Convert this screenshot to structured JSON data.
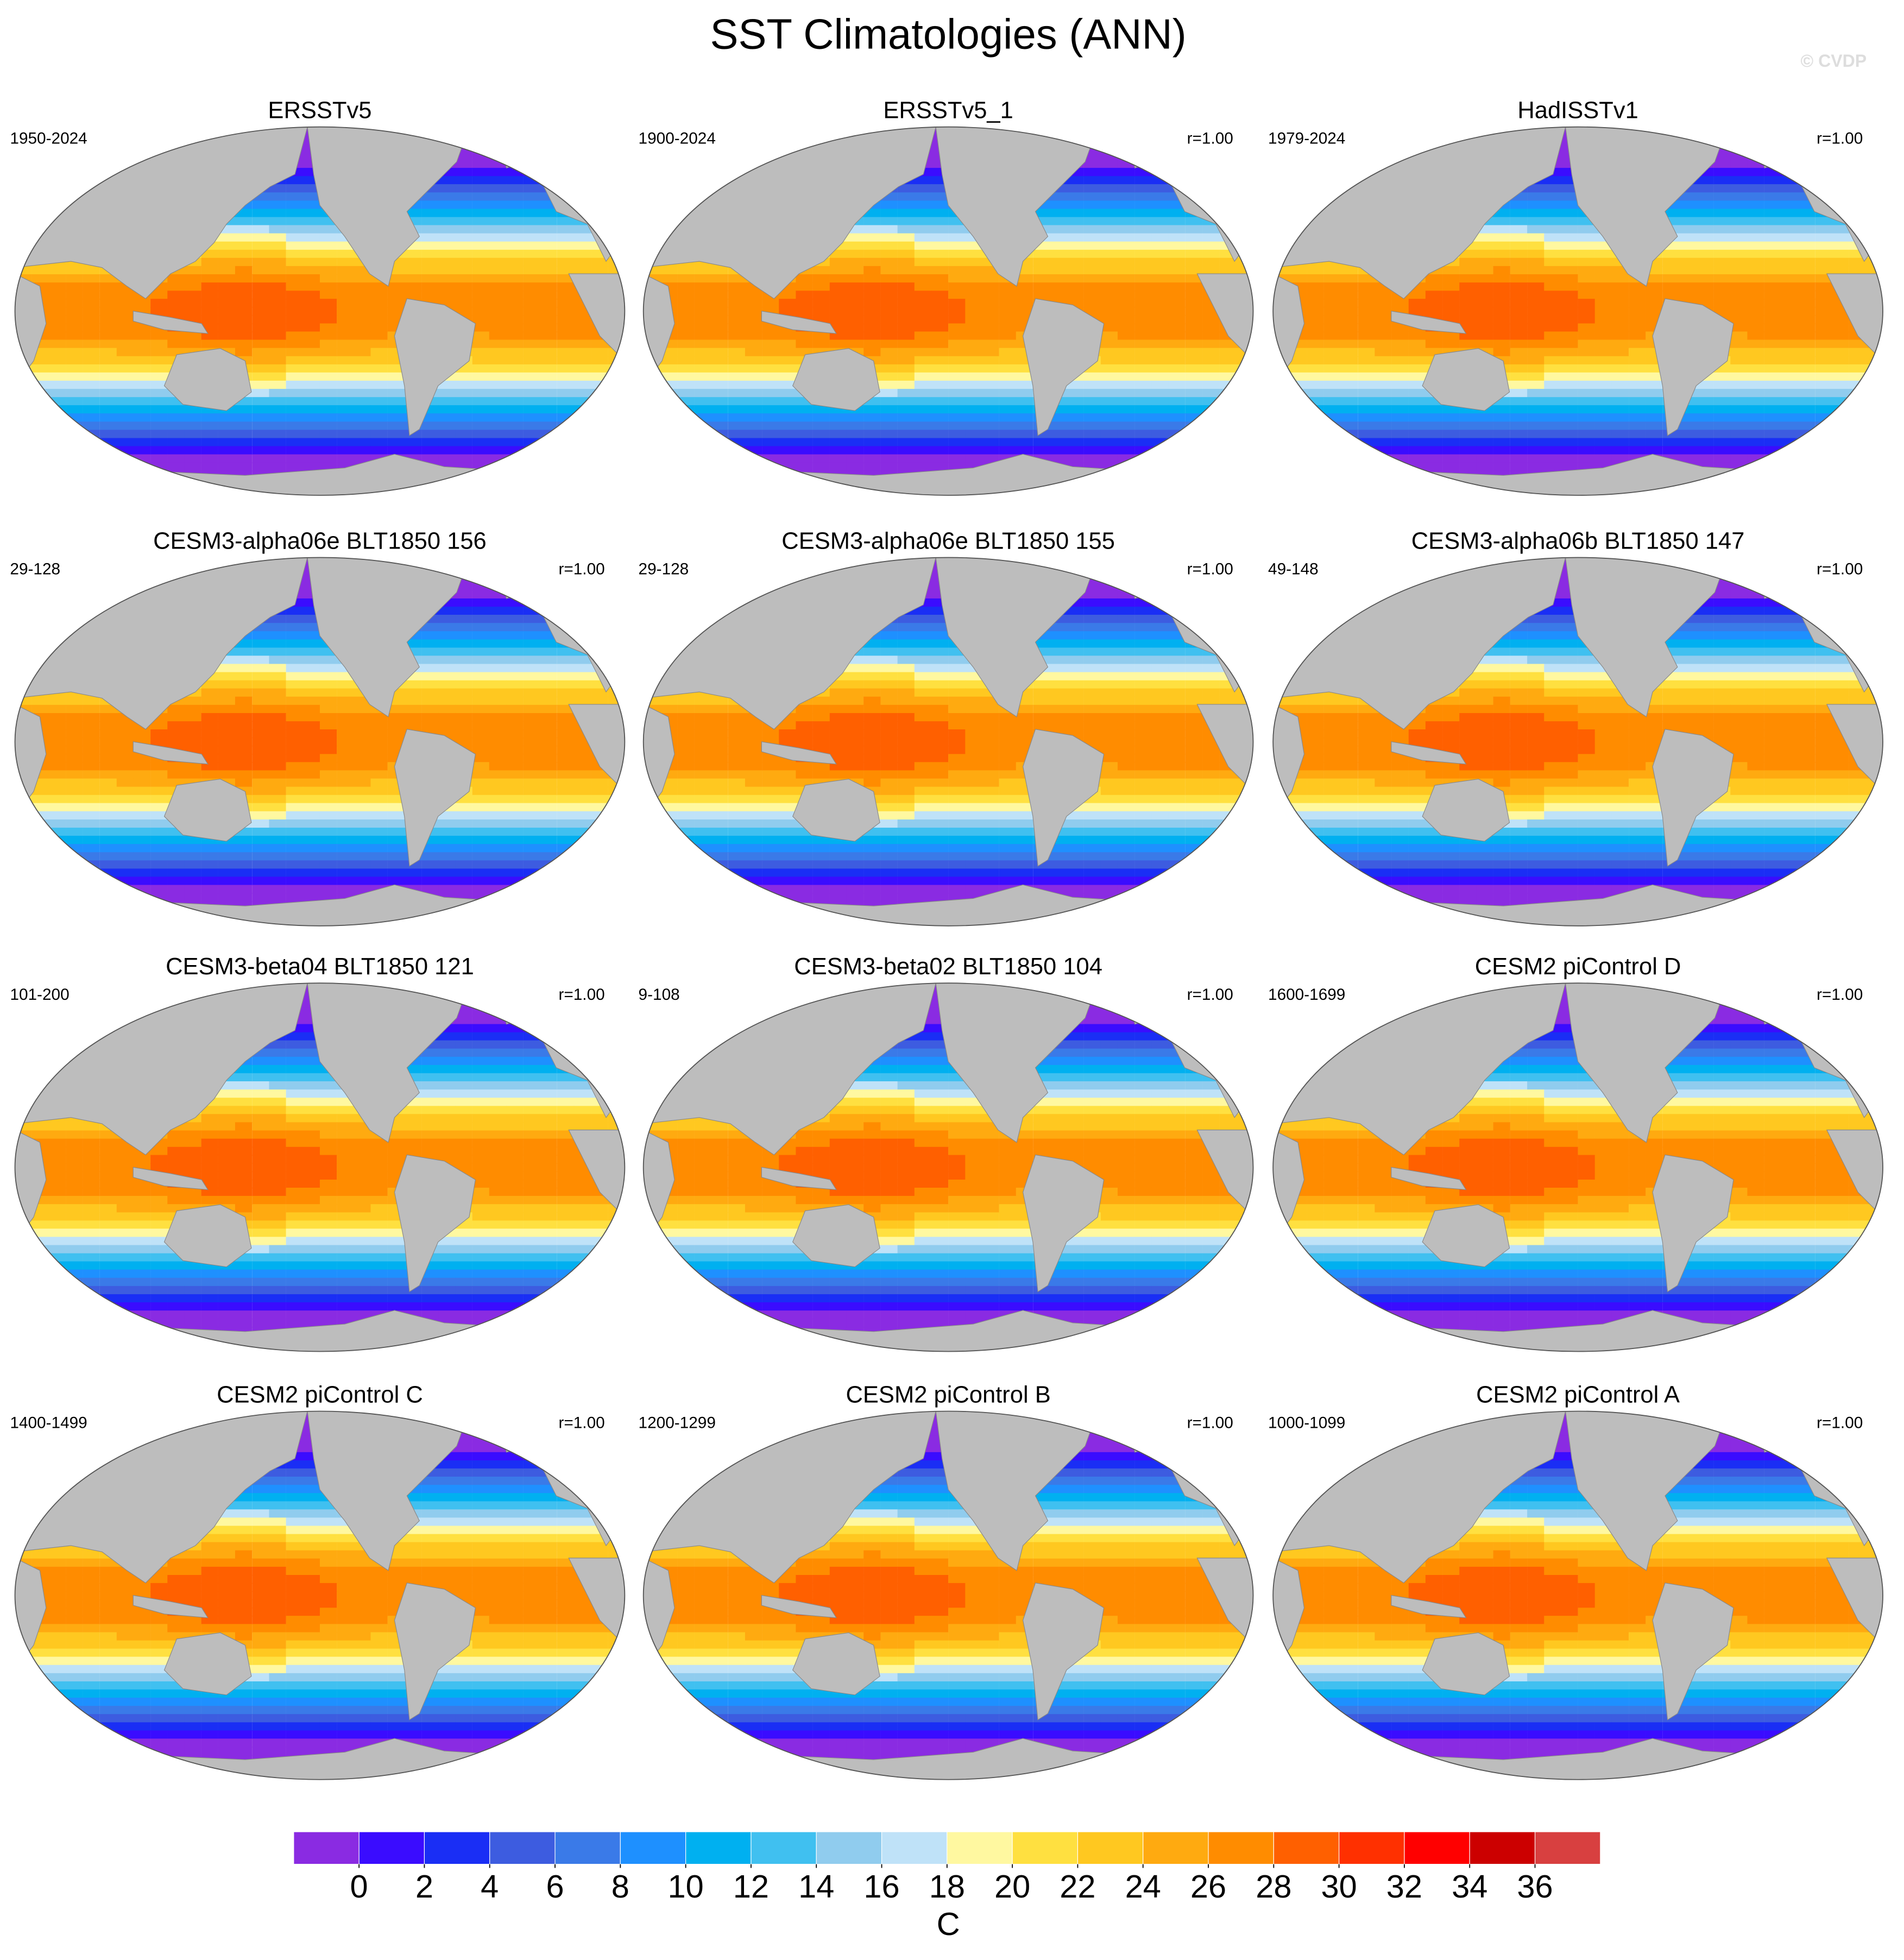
{
  "title": "SST Climatologies (ANN)",
  "credit": "© CVDP",
  "panels": [
    {
      "title": "ERSSTv5",
      "period": "1950-2024"
    },
    {
      "title": "ERSSTv5_1",
      "period": "1900-2024",
      "r": "r=1.00"
    },
    {
      "title": "HadISSTv1",
      "period": "1979-2024",
      "r": "r=1.00"
    },
    {
      "title": "CESM3-alpha06e BLT1850 156",
      "period": "29-128",
      "r": "r=1.00"
    },
    {
      "title": "CESM3-alpha06e BLT1850 155",
      "period": "29-128",
      "r": "r=1.00"
    },
    {
      "title": "CESM3-alpha06b BLT1850 147",
      "period": "49-148",
      "r": "r=1.00"
    },
    {
      "title": "CESM3-beta04 BLT1850 121",
      "period": "101-200",
      "r": "r=1.00"
    },
    {
      "title": "CESM3-beta02 BLT1850 104",
      "period": "9-108",
      "r": "r=1.00"
    },
    {
      "title": "CESM2 piControl D",
      "period": "1600-1699",
      "r": "r=1.00"
    },
    {
      "title": "CESM2 piControl C",
      "period": "1400-1499",
      "r": "r=1.00"
    },
    {
      "title": "CESM2 piControl B",
      "period": "1200-1299",
      "r": "r=1.00"
    },
    {
      "title": "CESM2 piControl A",
      "period": "1000-1099",
      "r": "r=1.00"
    }
  ],
  "colorbar": {
    "colors": [
      "#8a2be2",
      "#3a0cff",
      "#1a2ef5",
      "#3d5ce0",
      "#3a7ae8",
      "#1e90ff",
      "#00b0f0",
      "#40c0f0",
      "#90ccee",
      "#bfe2f8",
      "#fff8a0",
      "#ffe040",
      "#ffc820",
      "#ffaa10",
      "#ff8c00",
      "#ff6000",
      "#ff3000",
      "#ff0000",
      "#cc0000",
      "#d84040",
      "#ffb0b8"
    ],
    "ticks": [
      0,
      2,
      4,
      6,
      8,
      10,
      12,
      14,
      16,
      18,
      20,
      22,
      24,
      26,
      28,
      30,
      32,
      34,
      36
    ],
    "unit": "C"
  }
}
